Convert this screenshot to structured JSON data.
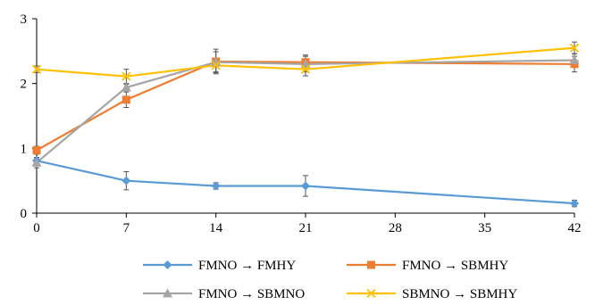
{
  "chart_data": {
    "type": "line",
    "x": [
      0,
      7,
      14,
      21,
      42
    ],
    "x_ticks": [
      "0",
      "7",
      "14",
      "21",
      "28",
      "35",
      "42"
    ],
    "y_ticks": [
      "0",
      "1",
      "2",
      "3"
    ],
    "xlim": [
      0,
      42
    ],
    "ylim": [
      0,
      3
    ],
    "grid": false,
    "legend_position": "bottom",
    "series": [
      {
        "name": "FMNO → FMHY",
        "color": "#5B9BD5",
        "marker": "diamond",
        "values": [
          0.81,
          0.5,
          0.42,
          0.42,
          0.15
        ],
        "errors": [
          0.03,
          0.14,
          0.05,
          0.16,
          0.05
        ]
      },
      {
        "name": "FMNO → SBMHY",
        "color": "#ED7D31",
        "marker": "square",
        "values": [
          0.97,
          1.75,
          2.34,
          2.33,
          2.3
        ],
        "errors": [
          0.06,
          0.12,
          0.19,
          0.11,
          0.12
        ]
      },
      {
        "name": "FMNO → SBMNO",
        "color": "#A5A5A5",
        "marker": "triangle",
        "values": [
          0.78,
          1.94,
          2.33,
          2.3,
          2.36
        ],
        "errors": [
          0.08,
          0.05,
          0.16,
          0.12,
          0.1
        ]
      },
      {
        "name": "SBMNO → SBMHY",
        "color": "#FFC000",
        "marker": "x",
        "values": [
          2.22,
          2.11,
          2.28,
          2.22,
          2.55
        ],
        "errors": [
          0.05,
          0.11,
          0.1,
          0.1,
          0.09
        ]
      }
    ]
  }
}
